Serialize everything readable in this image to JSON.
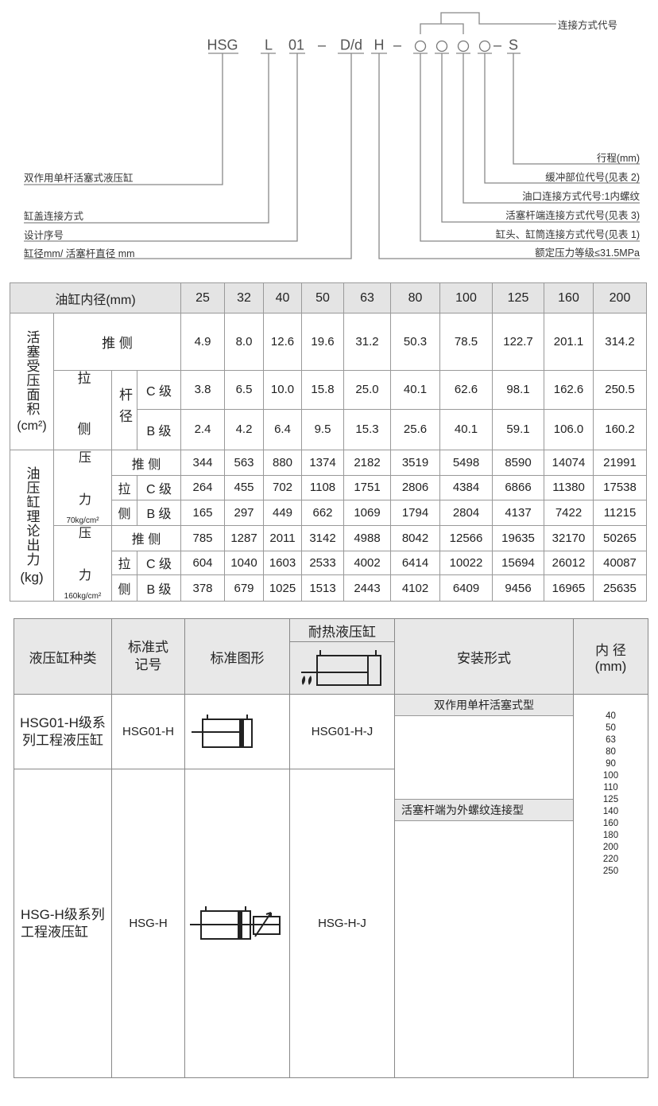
{
  "designation": {
    "code_parts": {
      "series": "HSG",
      "cover": "L",
      "serial": "01",
      "dash": "–",
      "bore": "D/d",
      "pressure": "H",
      "stroke": "S"
    },
    "connection_code_label": "连接方式代号",
    "left_labels": [
      "双作用单杆活塞式液压缸",
      "缸盖连接方式",
      "设计序号",
      "缸径mm/ 活塞杆直径 mm"
    ],
    "right_labels": [
      "行程(mm)",
      "缓冲部位代号(见表 2)",
      "油口连接方式代号:1内螺纹",
      "活塞杆端连接方式代号(见表 3)",
      "缸头、缸筒连接方式代号(见表 1)",
      "额定压力等级≤31.5MPa"
    ]
  },
  "spec_table": {
    "header_label": "油缸内径(mm)",
    "bores": [
      "25",
      "32",
      "40",
      "50",
      "63",
      "80",
      "100",
      "125",
      "160",
      "200"
    ],
    "area_label": "活塞受压面积",
    "area_unit": "(cm²)",
    "force_label": "油压缸理论出力",
    "force_unit": "(kg)",
    "push": "推  侧",
    "pull": "拉",
    "pull_side": "侧",
    "pull_full": "拉  侧",
    "rod_diameter": "杆径",
    "c_grade": "C 级",
    "b_grade": "B 级",
    "pressure_label": "压  力",
    "p70": "70kg/cm²",
    "p160": "160kg/cm²",
    "rows": {
      "area_push": [
        "4.9",
        "8.0",
        "12.6",
        "19.6",
        "31.2",
        "50.3",
        "78.5",
        "122.7",
        "201.1",
        "314.2"
      ],
      "area_c": [
        "3.8",
        "6.5",
        "10.0",
        "15.8",
        "25.0",
        "40.1",
        "62.6",
        "98.1",
        "162.6",
        "250.5"
      ],
      "area_b": [
        "2.4",
        "4.2",
        "6.4",
        "9.5",
        "15.3",
        "25.6",
        "40.1",
        "59.1",
        "106.0",
        "160.2"
      ],
      "f70_push": [
        "344",
        "563",
        "880",
        "1374",
        "2182",
        "3519",
        "5498",
        "8590",
        "14074",
        "21991"
      ],
      "f70_c": [
        "264",
        "455",
        "702",
        "1108",
        "1751",
        "2806",
        "4384",
        "6866",
        "11380",
        "17538"
      ],
      "f70_b": [
        "165",
        "297",
        "449",
        "662",
        "1069",
        "1794",
        "2804",
        "4137",
        "7422",
        "11215"
      ],
      "f160_push": [
        "785",
        "1287",
        "2011",
        "3142",
        "4988",
        "8042",
        "12566",
        "19635",
        "32170",
        "50265"
      ],
      "f160_c": [
        "604",
        "1040",
        "1603",
        "2533",
        "4002",
        "6414",
        "10022",
        "15694",
        "26012",
        "40087"
      ],
      "f160_b": [
        "378",
        "679",
        "1025",
        "1513",
        "2443",
        "4102",
        "6409",
        "9456",
        "16965",
        "25635"
      ]
    }
  },
  "models_table": {
    "headers": {
      "type": "液压缸种类",
      "std_code": "标准式记号",
      "std_symbol": "标准图形",
      "heat_resistant": "耐热液压缸",
      "mounting": "安装形式",
      "bore": "内 径",
      "bore_unit": "(mm)"
    },
    "rows": [
      {
        "type": "HSG01-H级系列工程液压缸",
        "std_code": "HSG01-H",
        "heat_code": "HSG01-H-J"
      },
      {
        "type": "HSG-H级系列工程液压缸",
        "std_code": "HSG-H",
        "heat_code": "HSG-H-J"
      }
    ],
    "mounting_types": [
      "双作用单杆活塞式型",
      "活塞杆端为外螺纹连接型"
    ],
    "bore_sizes": [
      "40",
      "50",
      "63",
      "80",
      "90",
      "100",
      "110",
      "125",
      "140",
      "160",
      "180",
      "200",
      "220",
      "250"
    ]
  }
}
